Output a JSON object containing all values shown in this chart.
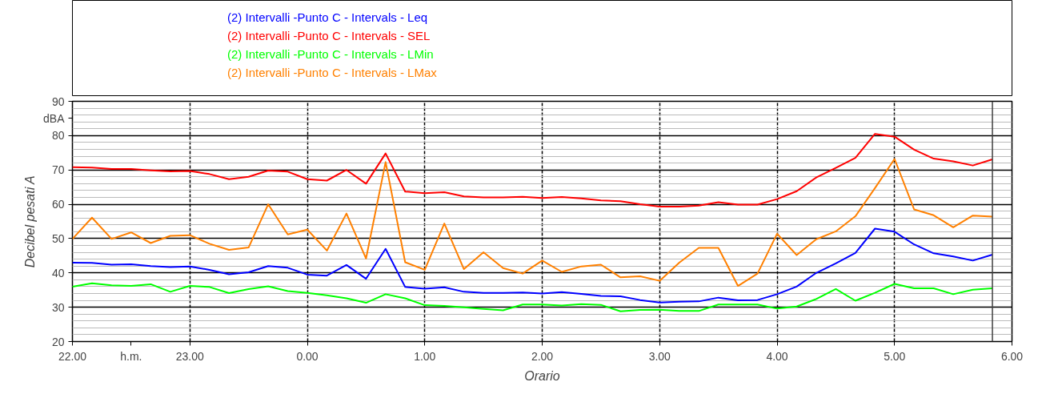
{
  "chart_data": {
    "type": "line",
    "xlabel": "Orario",
    "ylabel": "Decibel pesati A",
    "annotations": [
      "h.m.",
      "dBA"
    ],
    "x": [
      "2000-01-01T22:00",
      "2000-01-01T22:10",
      "2000-01-01T22:20",
      "2000-01-01T22:30",
      "2000-01-01T22:40",
      "2000-01-01T22:50",
      "2000-01-01T23:00",
      "2000-01-01T23:10",
      "2000-01-01T23:20",
      "2000-01-01T23:30",
      "2000-01-01T23:40",
      "2000-01-01T23:50",
      "2000-01-02T00:00",
      "2000-01-02T00:10",
      "2000-01-02T00:20",
      "2000-01-02T00:30",
      "2000-01-02T00:40",
      "2000-01-02T00:50",
      "2000-01-02T01:00",
      "2000-01-02T01:10",
      "2000-01-02T01:20",
      "2000-01-02T01:30",
      "2000-01-02T01:40",
      "2000-01-02T01:50",
      "2000-01-02T02:00",
      "2000-01-02T02:10",
      "2000-01-02T02:20",
      "2000-01-02T02:30",
      "2000-01-02T02:40",
      "2000-01-02T02:50",
      "2000-01-02T03:00",
      "2000-01-02T03:10",
      "2000-01-02T03:20",
      "2000-01-02T03:30",
      "2000-01-02T03:40",
      "2000-01-02T03:50",
      "2000-01-02T04:00",
      "2000-01-02T04:10",
      "2000-01-02T04:20",
      "2000-01-02T04:30",
      "2000-01-02T04:40",
      "2000-01-02T04:50",
      "2000-01-02T05:00",
      "2000-01-02T05:10",
      "2000-01-02T05:20",
      "2000-01-02T05:30",
      "2000-01-02T05:40",
      "2000-01-02T05:50"
    ],
    "series": [
      {
        "name": "(2) Intervalli -Punto C - Intervals - Leq",
        "color": "#0000ff",
        "values": [
          43,
          42.9,
          42.4,
          42.5,
          42,
          41.7,
          41.9,
          40.9,
          39.6,
          40.2,
          42,
          41.5,
          39.5,
          39.2,
          42.3,
          38.3,
          47,
          35.9,
          35.4,
          35.8,
          34.5,
          34.2,
          34.2,
          34.3,
          34,
          34.4,
          33.9,
          33.3,
          33.2,
          32.1,
          31.4,
          31.6,
          31.7,
          32.8,
          32,
          32.1,
          33.8,
          36,
          40,
          42.8,
          45.8,
          52.9,
          52,
          48.3,
          45.7,
          44.8,
          43.6,
          45.3
        ]
      },
      {
        "name": "(2) Intervalli -Punto C - Intervals - SEL",
        "color": "#ff0000",
        "values": [
          70.8,
          70.7,
          70.3,
          70.3,
          69.9,
          69.6,
          69.7,
          68.8,
          67.3,
          68,
          69.8,
          69.5,
          67.3,
          66.9,
          70,
          66,
          74.8,
          63.7,
          63.2,
          63.5,
          62.3,
          62,
          62,
          62.2,
          61.8,
          62.1,
          61.7,
          61.1,
          60.9,
          60,
          59.3,
          59.3,
          59.6,
          60.6,
          59.9,
          59.9,
          61.5,
          63.8,
          67.8,
          70.6,
          73.5,
          80.5,
          79.7,
          75.9,
          73.3,
          72.5,
          71.3,
          73.1
        ]
      },
      {
        "name": "(2) Intervalli -Punto C - Intervals - LMin",
        "color": "#00ff00",
        "values": [
          36,
          37,
          36.4,
          36.2,
          36.7,
          34.5,
          36.2,
          35.9,
          34.1,
          35.3,
          36.1,
          34.7,
          34.2,
          33.5,
          32.6,
          31.3,
          33.8,
          32.6,
          30.6,
          30.4,
          30,
          29.5,
          29.1,
          30.8,
          30.8,
          30.5,
          30.9,
          30.7,
          28.8,
          29.2,
          29.3,
          28.9,
          28.9,
          30.8,
          30.8,
          30.8,
          29.6,
          30.2,
          32.4,
          35.3,
          31.9,
          34.2,
          36.8,
          35.5,
          35.5,
          33.8,
          35.1,
          35.5
        ]
      },
      {
        "name": "(2) Intervalli -Punto C - Intervals - LMax",
        "color": "#ff8000",
        "values": [
          49.9,
          56.1,
          49.9,
          51.8,
          48.7,
          50.8,
          51,
          48.5,
          46.7,
          47.4,
          60,
          51.2,
          52.6,
          46.5,
          57.3,
          44.2,
          72.3,
          43.1,
          40.9,
          54.4,
          41.1,
          46,
          41.4,
          39.8,
          43.6,
          40.3,
          41.9,
          42.4,
          38.7,
          39,
          37.7,
          43,
          47.3,
          47.3,
          36.2,
          39.8,
          51.4,
          45.2,
          49.8,
          52.1,
          56.5,
          64.7,
          73.2,
          58.5,
          56.8,
          53.3,
          56.7,
          56.4
        ]
      }
    ],
    "xlim": [
      "2000-01-01T22:00",
      "2000-01-02T06:00"
    ],
    "xticks": [
      {
        "value": "2000-01-01T22:00",
        "label": "22.00"
      },
      {
        "value": "2000-01-01T23:00",
        "label": "23.00"
      },
      {
        "value": "2000-01-02T00:00",
        "label": "0.00"
      },
      {
        "value": "2000-01-02T01:00",
        "label": "1.00"
      },
      {
        "value": "2000-01-02T02:00",
        "label": "2.00"
      },
      {
        "value": "2000-01-02T03:00",
        "label": "3.00"
      },
      {
        "value": "2000-01-02T04:00",
        "label": "4.00"
      },
      {
        "value": "2000-01-02T05:00",
        "label": "5.00"
      },
      {
        "value": "2000-01-02T06:00",
        "label": "6.00"
      }
    ],
    "ylim": [
      20,
      90
    ],
    "yticks": [
      20,
      30,
      40,
      50,
      60,
      70,
      80,
      90
    ],
    "ref_lines": [
      {
        "axis": "x",
        "value": "2000-01-02T05:50",
        "label": null,
        "color": "#404040"
      }
    ],
    "grid": true,
    "legend": "top",
    "marker": "none",
    "line_style": "solid"
  }
}
